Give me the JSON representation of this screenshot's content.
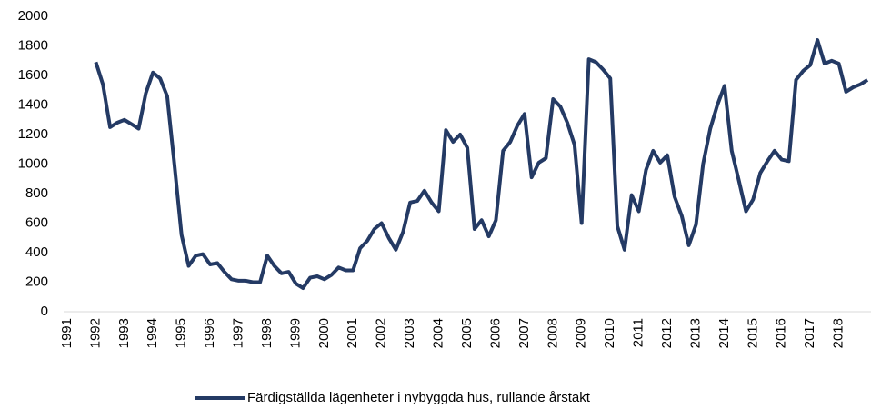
{
  "chart_data": {
    "type": "line",
    "categories": [
      "1991",
      null,
      null,
      null,
      "1992",
      null,
      null,
      null,
      "1993",
      null,
      null,
      null,
      "1994",
      null,
      null,
      null,
      "1995",
      null,
      null,
      null,
      "1996",
      null,
      null,
      null,
      "1997",
      null,
      null,
      null,
      "1998",
      null,
      null,
      null,
      "1999",
      null,
      null,
      null,
      "2000",
      null,
      null,
      null,
      "2001",
      null,
      null,
      null,
      "2002",
      null,
      null,
      null,
      "2003",
      null,
      null,
      null,
      "2004",
      null,
      null,
      null,
      "2005",
      null,
      null,
      null,
      "2006",
      null,
      null,
      null,
      "2007",
      null,
      null,
      null,
      "2008",
      null,
      null,
      null,
      "2009",
      null,
      null,
      null,
      "2010",
      null,
      null,
      null,
      "2011",
      null,
      null,
      null,
      "2012",
      null,
      null,
      null,
      "2013",
      null,
      null,
      null,
      "2014",
      null,
      null,
      null,
      "2015",
      null,
      null,
      null,
      "2016",
      null,
      null,
      null,
      "2017",
      null,
      null,
      null,
      "2018",
      null,
      null,
      null,
      null
    ],
    "series": [
      {
        "name": "Färdigställda lägenheter i nybyggda hus, rullande årstakt",
        "color": "#243a64",
        "values": [
          null,
          null,
          null,
          null,
          1690,
          1540,
          1250,
          1280,
          1300,
          1270,
          1240,
          1480,
          1620,
          1580,
          1460,
          1000,
          520,
          310,
          380,
          390,
          320,
          330,
          270,
          220,
          210,
          210,
          200,
          200,
          380,
          310,
          260,
          270,
          190,
          160,
          230,
          240,
          220,
          250,
          300,
          280,
          280,
          430,
          480,
          560,
          600,
          500,
          420,
          540,
          740,
          750,
          820,
          740,
          680,
          1230,
          1150,
          1200,
          1110,
          560,
          620,
          510,
          620,
          1090,
          1150,
          1260,
          1340,
          910,
          1010,
          1040,
          1440,
          1390,
          1280,
          1130,
          600,
          1710,
          1690,
          1640,
          1580,
          580,
          420,
          790,
          680,
          960,
          1090,
          1010,
          1060,
          780,
          650,
          450,
          590,
          1000,
          1240,
          1400,
          1530,
          1090,
          890,
          680,
          760,
          940,
          1020,
          1090,
          1030,
          1020,
          1570,
          1630,
          1670,
          1840,
          1680,
          1700,
          1680,
          1490,
          1520,
          1540,
          1570
        ]
      }
    ],
    "ylim": [
      0,
      2000
    ],
    "yticks": [
      0,
      200,
      400,
      600,
      800,
      1000,
      1200,
      1400,
      1600,
      1800,
      2000
    ],
    "grid": false,
    "legend": "bottom"
  }
}
